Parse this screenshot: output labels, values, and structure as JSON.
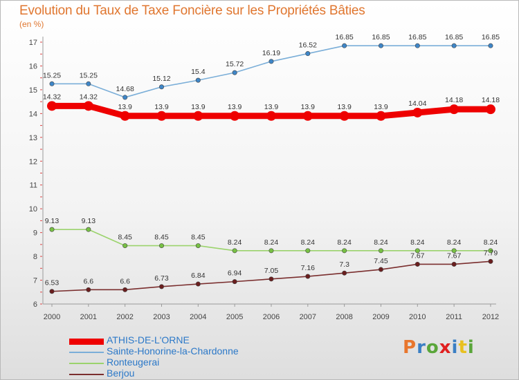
{
  "title": "Evolution du Taux de Taxe Foncière sur les Propriétés Bâties",
  "subtitle": "(en %)",
  "logo": {
    "text": "Proxiti",
    "letter_colors": [
      "#e8762d",
      "#3b7fc4",
      "#5aa63a",
      "#e02020",
      "#3b7fc4",
      "#e8c020",
      "#5aa63a"
    ]
  },
  "chart_data": {
    "type": "line",
    "title": "Evolution du Taux de Taxe Foncière sur les Propriétés Bâties",
    "ylabel": "(en %)",
    "xlabel": "",
    "x": [
      "2000",
      "2001",
      "2002",
      "2003",
      "2004",
      "2005",
      "2006",
      "2007",
      "2008",
      "2009",
      "2010",
      "2011",
      "2012"
    ],
    "ylim": [
      6,
      17
    ],
    "yticks": [
      "6",
      "7",
      "8",
      "9",
      "10",
      "11",
      "12",
      "13",
      "14",
      "15",
      "16",
      "17"
    ],
    "grid": false,
    "legend_position": "bottom-left",
    "series": [
      {
        "name": "ATHIS-DE-L'ORNE",
        "color": "#ee0000",
        "marker_color": "#ee0000",
        "thick": true,
        "values": [
          14.32,
          14.32,
          13.9,
          13.9,
          13.9,
          13.9,
          13.9,
          13.9,
          13.9,
          13.9,
          14.04,
          14.18,
          14.18
        ],
        "labels": [
          "14.32",
          "14.32",
          "13.9",
          "13.9",
          "13.9",
          "13.9",
          "13.9",
          "13.9",
          "13.9",
          "13.9",
          "14.04",
          "14.18",
          "14.18"
        ]
      },
      {
        "name": "Sainte-Honorine-la-Chardonne",
        "color": "#7aaed8",
        "marker_color": "#3e86c8",
        "thick": false,
        "values": [
          15.25,
          15.25,
          14.68,
          15.12,
          15.4,
          15.72,
          16.19,
          16.52,
          16.85,
          16.85,
          16.85,
          16.85,
          16.85
        ],
        "labels": [
          "15.25",
          "15.25",
          "14.68",
          "15.12",
          "15.4",
          "15.72",
          "16.19",
          "16.52",
          "16.85",
          "16.85",
          "16.85",
          "16.85",
          "16.85"
        ]
      },
      {
        "name": "Ronteugerai",
        "color": "#9bd36c",
        "marker_color": "#77c044",
        "thick": false,
        "values": [
          9.13,
          9.13,
          8.45,
          8.45,
          8.45,
          8.24,
          8.24,
          8.24,
          8.24,
          8.24,
          8.24,
          8.24,
          8.24
        ],
        "labels": [
          "9.13",
          "9.13",
          "8.45",
          "8.45",
          "8.45",
          "8.24",
          "8.24",
          "8.24",
          "8.24",
          "8.24",
          "8.24",
          "8.24",
          "8.24"
        ]
      },
      {
        "name": "Berjou",
        "color": "#7a2e2e",
        "marker_color": "#6a1e1e",
        "thick": false,
        "values": [
          6.53,
          6.6,
          6.6,
          6.73,
          6.84,
          6.94,
          7.05,
          7.16,
          7.3,
          7.45,
          7.67,
          7.67,
          7.79
        ],
        "labels": [
          "6.53",
          "6.6",
          "6.6",
          "6.73",
          "6.84",
          "6.94",
          "7.05",
          "7.16",
          "7.3",
          "7.45",
          "7.67",
          "7.67",
          "7.79"
        ]
      }
    ]
  }
}
